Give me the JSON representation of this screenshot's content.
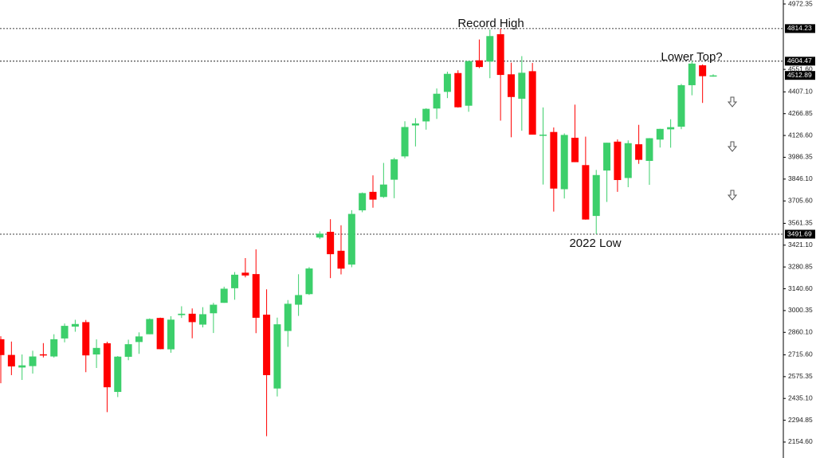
{
  "chart_data": {
    "type": "candlestick",
    "annotations": [
      "Record High",
      "Lower Top?",
      "2022 Low"
    ],
    "open": [
      2816,
      2715,
      2634,
      2643,
      2719,
      2705,
      2821,
      2897,
      2926,
      2718,
      2790,
      2477,
      2703,
      2798,
      2848,
      2953,
      2751,
      2971,
      2980,
      2910,
      2983,
      3050,
      3144,
      3244,
      3235,
      2974,
      2499,
      2869,
      3038,
      3106,
      3470,
      3507,
      3385,
      3296,
      3645,
      3764,
      3731,
      3842,
      3992,
      4191,
      4217,
      4300,
      4407,
      4528,
      4318,
      4610,
      4602,
      4778,
      4520,
      4363,
      4540,
      4130,
      4149,
      3781,
      4112,
      3936,
      3609,
      3901,
      4087,
      3853,
      4070,
      3963,
      4100,
      4166,
      4183,
      4450,
      4578,
      4510
    ],
    "high": [
      2835,
      2801,
      2718,
      2742,
      2791,
      2848,
      2917,
      2941,
      2940,
      2815,
      2800,
      2708,
      2813,
      2860,
      2950,
      2955,
      2964,
      3028,
      3014,
      3022,
      3050,
      3154,
      3248,
      3338,
      3394,
      3137,
      2955,
      3068,
      3234,
      3280,
      3510,
      3588,
      3549,
      3646,
      3760,
      3870,
      3950,
      3983,
      4218,
      4238,
      4302,
      4429,
      4537,
      4546,
      4608,
      4744,
      4808,
      4814,
      4595,
      4637,
      4593,
      4307,
      4178,
      4140,
      4325,
      4119,
      3905,
      4080,
      4101,
      4095,
      4195,
      4110,
      4170,
      4231,
      4458,
      4607,
      4584,
      4520
    ],
    "low": [
      2533,
      2585,
      2554,
      2595,
      2699,
      2698,
      2796,
      2864,
      2604,
      2631,
      2347,
      2444,
      2681,
      2722,
      2848,
      2751,
      2729,
      2953,
      2822,
      2892,
      2856,
      3050,
      3070,
      3214,
      2855,
      2192,
      2448,
      2767,
      2966,
      3101,
      3460,
      3209,
      3233,
      3279,
      3633,
      3662,
      3725,
      3723,
      3980,
      4056,
      4164,
      4233,
      4367,
      4306,
      4279,
      4560,
      4495,
      4222,
      4115,
      4157,
      4132,
      3811,
      3637,
      3721,
      3955,
      3585,
      3492,
      3699,
      3764,
      3794,
      3944,
      3809,
      4049,
      4048,
      4167,
      4385,
      4336,
      4505
    ],
    "close": [
      2714,
      2641,
      2648,
      2705,
      2718,
      2816,
      2902,
      2914,
      2712,
      2760,
      2507,
      2704,
      2784,
      2834,
      2946,
      2752,
      2942,
      2980,
      2926,
      2977,
      3038,
      3141,
      3231,
      3226,
      2954,
      2585,
      2912,
      3044,
      3100,
      3271,
      3495,
      3363,
      3270,
      3622,
      3756,
      3714,
      3811,
      3973,
      4181,
      4204,
      4298,
      4395,
      4523,
      4308,
      4605,
      4567,
      4766,
      4516,
      4374,
      4530,
      4132,
      4132,
      3785,
      4130,
      3955,
      3586,
      3872,
      4080,
      3840,
      4077,
      3970,
      4109,
      4169,
      4180,
      4450,
      4589,
      4508,
      4513
    ],
    "up_color": "#3ccf6b",
    "down_color": "#ff0000",
    "ylim": [
      2052,
      4998
    ],
    "yticks": [
      {
        "value": 2154.6,
        "label": "2154.60"
      },
      2294.85,
      {
        "value": 2435.1,
        "label": "2435.10"
      },
      2575.35,
      {
        "value": 2715.6,
        "label": "2715.60"
      },
      {
        "value": 2860.1,
        "label": "2860.10"
      },
      3000.35,
      {
        "value": 3140.6,
        "label": "3140.60"
      },
      3280.85,
      {
        "value": 3421.1,
        "label": "3421.10"
      },
      3561.35,
      {
        "value": 3705.6,
        "label": "3705.60"
      },
      {
        "value": 3846.1,
        "label": "3846.10"
      },
      3986.35,
      {
        "value": 4126.6,
        "label": "4126.60"
      },
      4266.85,
      {
        "value": 4407.1,
        "label": "4407.10"
      },
      {
        "value": 4551.6,
        "label": "4551.60"
      },
      4972.35
    ],
    "levels": [
      4814.23,
      4604.47,
      3491.69
    ],
    "last_price": 4512.89
  }
}
